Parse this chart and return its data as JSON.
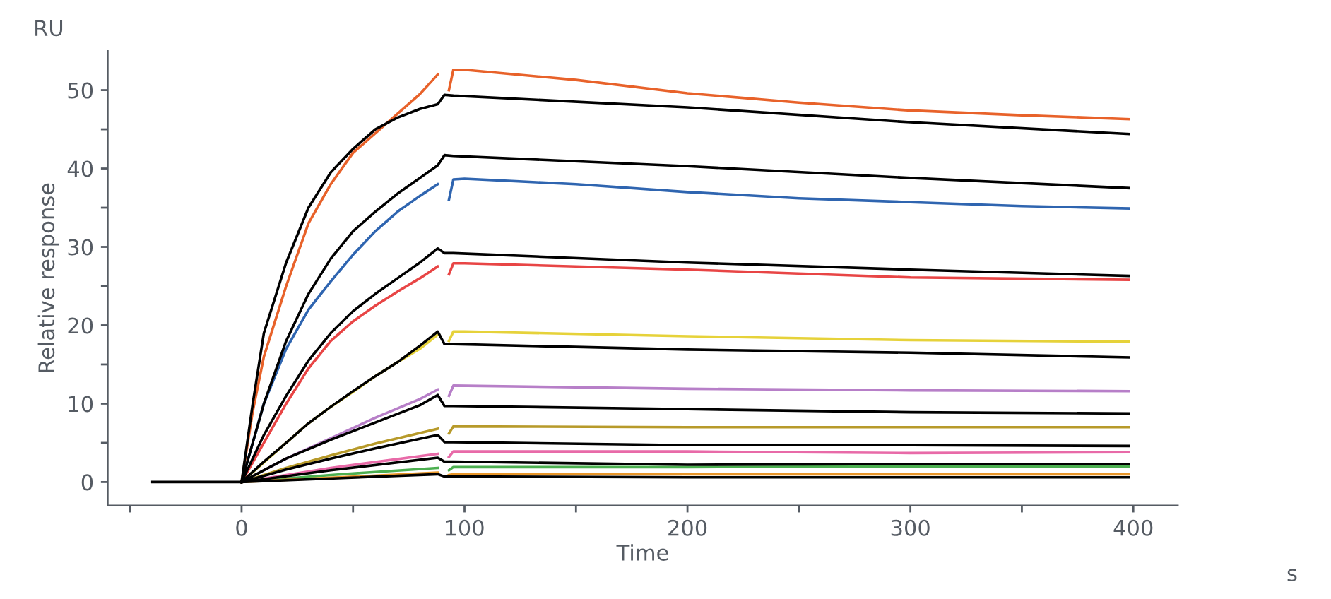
{
  "chart_data": {
    "type": "line",
    "xlabel": "Time",
    "ylabel": "Relative response",
    "annotations": [
      "RU",
      "s"
    ],
    "xlim": [
      -60,
      420
    ],
    "ylim": [
      -3,
      55
    ],
    "xticks": [
      {
        "value": -50,
        "label": null
      },
      0,
      {
        "value": 50,
        "label": null
      },
      100,
      {
        "value": 150,
        "label": null
      },
      200,
      {
        "value": 250,
        "label": null
      },
      300,
      {
        "value": 350,
        "label": null
      },
      400
    ],
    "yticks": [
      0,
      {
        "value": 5,
        "label": null
      },
      10,
      {
        "value": 15,
        "label": null
      },
      20,
      {
        "value": 25,
        "label": null
      },
      30,
      {
        "value": 35,
        "label": null
      },
      40,
      {
        "value": 45,
        "label": null
      },
      50
    ],
    "grid": false,
    "legend": false,
    "marker": "none",
    "line_style": "solid",
    "series": [
      {
        "color": "#e8622a",
        "x": [
          0,
          5,
          10,
          20,
          30,
          40,
          50,
          60,
          70,
          80,
          88,
          90,
          93,
          95,
          100,
          150,
          200,
          250,
          300,
          350,
          398
        ],
        "values": [
          0,
          9,
          16,
          25,
          33,
          38,
          42,
          44.5,
          47,
          49.5,
          52,
          null,
          50,
          52.6,
          52.6,
          51.3,
          49.6,
          48.4,
          47.4,
          46.8,
          46.3
        ]
      },
      {
        "color": "#2f65b0",
        "x": [
          0,
          5,
          10,
          20,
          30,
          40,
          50,
          60,
          70,
          80,
          88,
          90,
          93,
          95,
          100,
          150,
          200,
          250,
          300,
          350,
          398
        ],
        "values": [
          0,
          5,
          10,
          17,
          22,
          25.6,
          29,
          32,
          34.5,
          36.5,
          38,
          null,
          36,
          38.6,
          38.7,
          38,
          37,
          36.2,
          35.7,
          35.2,
          34.9
        ]
      },
      {
        "color": "#e84545",
        "x": [
          0,
          10,
          20,
          30,
          40,
          50,
          60,
          70,
          80,
          88,
          90,
          93,
          95,
          100,
          200,
          300,
          398
        ],
        "values": [
          0,
          5,
          10,
          14.5,
          18,
          20.5,
          22.5,
          24.3,
          26,
          27.5,
          null,
          26.5,
          27.9,
          27.9,
          27.1,
          26.1,
          25.8
        ]
      },
      {
        "color": "#e6d23a",
        "x": [
          0,
          10,
          20,
          30,
          40,
          50,
          60,
          70,
          80,
          88,
          90,
          93,
          95,
          100,
          200,
          300,
          398
        ],
        "values": [
          0,
          2.5,
          5,
          7.5,
          9.6,
          11.5,
          13.5,
          15.3,
          17,
          18.8,
          null,
          18,
          19.2,
          19.2,
          18.6,
          18.1,
          17.9
        ]
      },
      {
        "color": "#b77fc8",
        "x": [
          0,
          20,
          40,
          60,
          80,
          88,
          90,
          93,
          95,
          200,
          300,
          398
        ],
        "values": [
          0,
          3,
          5.6,
          8.2,
          10.6,
          11.8,
          null,
          11,
          12.3,
          11.9,
          11.7,
          11.6
        ]
      },
      {
        "color": "#b79a2a",
        "x": [
          0,
          20,
          40,
          60,
          88,
          90,
          93,
          95,
          200,
          300,
          398
        ],
        "values": [
          0,
          1.8,
          3.4,
          4.9,
          6.8,
          null,
          6.2,
          7.1,
          7.0,
          7.0,
          7.0
        ]
      },
      {
        "color": "#e86aa8",
        "x": [
          0,
          40,
          88,
          90,
          93,
          95,
          200,
          300,
          398
        ],
        "values": [
          0,
          1.8,
          3.6,
          null,
          3.2,
          3.9,
          3.9,
          3.7,
          3.8
        ]
      },
      {
        "color": "#4caf50",
        "x": [
          0,
          40,
          88,
          90,
          93,
          95,
          200,
          300,
          398
        ],
        "values": [
          0,
          0.9,
          1.8,
          null,
          1.5,
          1.9,
          1.9,
          2.0,
          2.0
        ]
      },
      {
        "color": "#e8962a",
        "x": [
          0,
          88,
          90,
          93,
          95,
          200,
          300,
          398
        ],
        "values": [
          0,
          1.2,
          null,
          0.9,
          1.0,
          1.0,
          1.0,
          1.0
        ]
      },
      {
        "color": "#000000",
        "x": [
          -40,
          0,
          5,
          10,
          20,
          30,
          40,
          50,
          60,
          70,
          80,
          88,
          91,
          95,
          200,
          300,
          398
        ],
        "values": [
          0,
          0,
          10,
          19,
          28,
          35,
          39.5,
          42.5,
          45,
          46.5,
          47.6,
          48.2,
          49.4,
          49.3,
          47.8,
          45.9,
          44.4
        ]
      },
      {
        "color": "#000000",
        "x": [
          0,
          10,
          20,
          30,
          40,
          50,
          60,
          70,
          80,
          88,
          91,
          95,
          200,
          300,
          398
        ],
        "values": [
          0,
          10,
          18,
          24,
          28.5,
          32,
          34.5,
          36.8,
          38.8,
          40.4,
          41.7,
          41.6,
          40.3,
          38.8,
          37.5
        ]
      },
      {
        "color": "#000000",
        "x": [
          0,
          10,
          20,
          30,
          40,
          50,
          60,
          70,
          80,
          88,
          91,
          95,
          200,
          300,
          398
        ],
        "values": [
          0,
          6,
          11,
          15.5,
          19,
          21.8,
          24,
          26,
          28,
          29.8,
          29.2,
          29.2,
          28,
          27.1,
          26.3
        ]
      },
      {
        "color": "#000000",
        "x": [
          0,
          10,
          20,
          30,
          40,
          50,
          60,
          70,
          80,
          88,
          91,
          95,
          200,
          300,
          398
        ],
        "values": [
          0,
          2.6,
          5,
          7.5,
          9.6,
          11.6,
          13.5,
          15.3,
          17.4,
          19.2,
          17.6,
          17.6,
          16.9,
          16.5,
          15.9
        ]
      },
      {
        "color": "#000000",
        "x": [
          0,
          20,
          40,
          60,
          80,
          88,
          91,
          95,
          200,
          300,
          398
        ],
        "values": [
          0,
          3,
          5.4,
          7.6,
          9.8,
          11.1,
          9.7,
          9.7,
          9.3,
          8.9,
          8.75
        ]
      },
      {
        "color": "#000000",
        "x": [
          0,
          20,
          40,
          60,
          88,
          91,
          95,
          200,
          300,
          398
        ],
        "values": [
          0,
          1.6,
          3.0,
          4.3,
          6.0,
          5.1,
          5.1,
          4.7,
          4.7,
          4.6
        ]
      },
      {
        "color": "#000000",
        "x": [
          0,
          40,
          88,
          91,
          95,
          200,
          300,
          398
        ],
        "values": [
          0,
          1.5,
          3.1,
          2.6,
          2.6,
          2.2,
          2.3,
          2.3
        ]
      },
      {
        "color": "#000000",
        "x": [
          0,
          88,
          91,
          95,
          200,
          300,
          398
        ],
        "values": [
          0,
          1.0,
          0.7,
          0.7,
          0.6,
          0.6,
          0.6
        ]
      }
    ]
  }
}
